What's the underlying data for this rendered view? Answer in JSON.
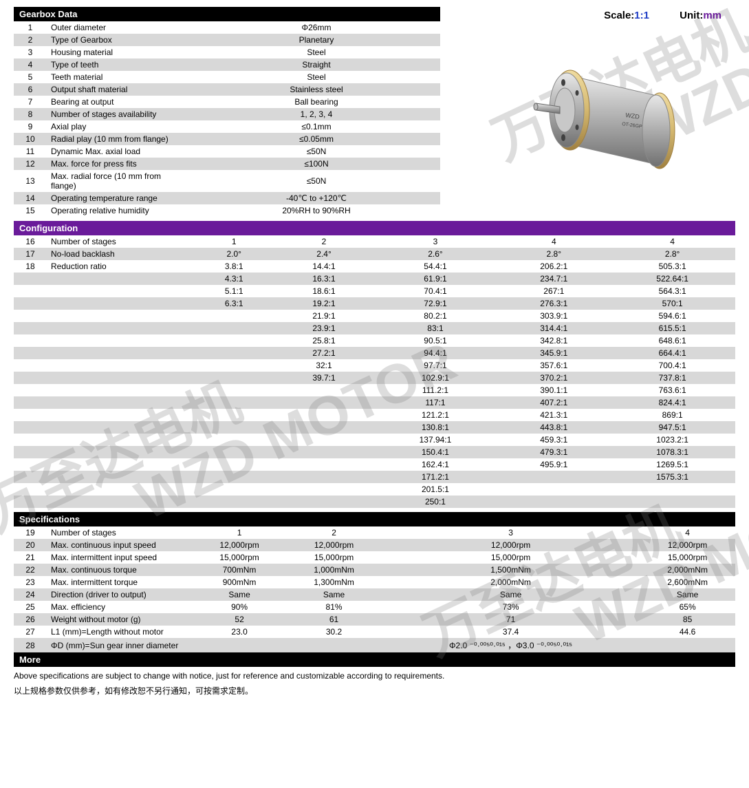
{
  "topRight": {
    "scaleLabel": "Scale:",
    "scaleValue": "1:1",
    "unitLabel": "Unit:",
    "unitValue": "mm"
  },
  "gearbox": {
    "header": "Gearbox Data",
    "rows": [
      {
        "n": "1",
        "label": "Outer diameter",
        "value": "Φ26mm"
      },
      {
        "n": "2",
        "label": "Type of Gearbox",
        "value": "Planetary"
      },
      {
        "n": "3",
        "label": "Housing material",
        "value": "Steel"
      },
      {
        "n": "4",
        "label": "Type of teeth",
        "value": "Straight"
      },
      {
        "n": "5",
        "label": "Teeth material",
        "value": "Steel"
      },
      {
        "n": "6",
        "label": "Output shaft material",
        "value": "Stainless steel"
      },
      {
        "n": "7",
        "label": "Bearing at output",
        "value": "Ball bearing"
      },
      {
        "n": "8",
        "label": "Number of stages availability",
        "value": "1, 2, 3, 4"
      },
      {
        "n": "9",
        "label": "Axial play",
        "value": "≤0.1mm"
      },
      {
        "n": "10",
        "label": "Radial play (10 mm from flange)",
        "value": "≤0.05mm"
      },
      {
        "n": "11",
        "label": "Dynamic Max. axial load",
        "value": "≤50N"
      },
      {
        "n": "12",
        "label": "Max. force for press fits",
        "value": "≤100N"
      },
      {
        "n": "13",
        "label": "Max. radial force (10 mm from flange)",
        "value": "≤50N"
      },
      {
        "n": "14",
        "label": "Operating temperature range",
        "value": "-40℃ to +120℃"
      },
      {
        "n": "15",
        "label": "Operating relative humidity",
        "value": "20%RH to 90%RH"
      }
    ]
  },
  "config": {
    "header": "Configuration",
    "rows": [
      {
        "n": "16",
        "label": "Number of stages",
        "c": [
          "1",
          "2",
          "3",
          "4",
          "4"
        ]
      },
      {
        "n": "17",
        "label": "No-load backlash",
        "c": [
          "2.0°",
          "2.4°",
          "2.6°",
          "2.8°",
          "2.8°"
        ]
      },
      {
        "n": "18",
        "label": "Reduction ratio",
        "c": [
          "3.8:1",
          "14.4:1",
          "54.4:1",
          "206.2:1",
          "505.3:1"
        ]
      },
      {
        "n": "",
        "label": "",
        "c": [
          "4.3:1",
          "16.3:1",
          "61.9:1",
          "234.7:1",
          "522.64:1"
        ]
      },
      {
        "n": "",
        "label": "",
        "c": [
          "5.1:1",
          "18.6:1",
          "70.4:1",
          "267:1",
          "564.3:1"
        ]
      },
      {
        "n": "",
        "label": "",
        "c": [
          "6.3:1",
          "19.2:1",
          "72.9:1",
          "276.3:1",
          "570:1"
        ]
      },
      {
        "n": "",
        "label": "",
        "c": [
          "",
          "21.9:1",
          "80.2:1",
          "303.9:1",
          "594.6:1"
        ]
      },
      {
        "n": "",
        "label": "",
        "c": [
          "",
          "23.9:1",
          "83:1",
          "314.4:1",
          "615.5:1"
        ]
      },
      {
        "n": "",
        "label": "",
        "c": [
          "",
          "25.8:1",
          "90.5:1",
          "342.8:1",
          "648.6:1"
        ]
      },
      {
        "n": "",
        "label": "",
        "c": [
          "",
          "27.2:1",
          "94.4:1",
          "345.9:1",
          "664.4:1"
        ]
      },
      {
        "n": "",
        "label": "",
        "c": [
          "",
          "32:1",
          "97.7:1",
          "357.6:1",
          "700.4:1"
        ]
      },
      {
        "n": "",
        "label": "",
        "c": [
          "",
          "39.7:1",
          "102.9:1",
          "370.2:1",
          "737.8:1"
        ]
      },
      {
        "n": "",
        "label": "",
        "c": [
          "",
          "",
          "111.2:1",
          "390.1:1",
          "763.6:1"
        ]
      },
      {
        "n": "",
        "label": "",
        "c": [
          "",
          "",
          "117:1",
          "407.2:1",
          "824.4:1"
        ]
      },
      {
        "n": "",
        "label": "",
        "c": [
          "",
          "",
          "121.2:1",
          "421.3:1",
          "869:1"
        ]
      },
      {
        "n": "",
        "label": "",
        "c": [
          "",
          "",
          "130.8:1",
          "443.8:1",
          "947.5:1"
        ]
      },
      {
        "n": "",
        "label": "",
        "c": [
          "",
          "",
          "137.94:1",
          "459.3:1",
          "1023.2:1"
        ]
      },
      {
        "n": "",
        "label": "",
        "c": [
          "",
          "",
          "150.4:1",
          "479.3:1",
          "1078.3:1"
        ]
      },
      {
        "n": "",
        "label": "",
        "c": [
          "",
          "",
          "162.4:1",
          "495.9:1",
          "1269.5:1"
        ]
      },
      {
        "n": "",
        "label": "",
        "c": [
          "",
          "",
          "171.2:1",
          "",
          "1575.3:1"
        ]
      },
      {
        "n": "",
        "label": "",
        "c": [
          "",
          "",
          "201.5:1",
          "",
          ""
        ]
      },
      {
        "n": "",
        "label": "",
        "c": [
          "",
          "",
          "250:1",
          "",
          ""
        ]
      }
    ]
  },
  "specs": {
    "header": "Specifications",
    "rows": [
      {
        "n": "19",
        "label": "Number of stages",
        "c": [
          "1",
          "2",
          "3",
          "4"
        ]
      },
      {
        "n": "20",
        "label": "Max. continuous input speed",
        "c": [
          "12,000rpm",
          "12,000rpm",
          "12,000rpm",
          "12,000rpm"
        ]
      },
      {
        "n": "21",
        "label": "Max. intermittent input speed",
        "c": [
          "15,000rpm",
          "15,000rpm",
          "15,000rpm",
          "15,000rpm"
        ]
      },
      {
        "n": "22",
        "label": "Max. continuous torque",
        "c": [
          "700mNm",
          "1,000mNm",
          "1,500mNm",
          "2,000mNm"
        ]
      },
      {
        "n": "23",
        "label": "Max. intermittent torque",
        "c": [
          "900mNm",
          "1,300mNm",
          "2,000mNm",
          "2,600mNm"
        ]
      },
      {
        "n": "24",
        "label": "Direction (driver to output)",
        "c": [
          "Same",
          "Same",
          "Same",
          "Same"
        ]
      },
      {
        "n": "25",
        "label": "Max. efficiency",
        "c": [
          "90%",
          "81%",
          "73%",
          "65%"
        ]
      },
      {
        "n": "26",
        "label": "Weight without motor (g)",
        "c": [
          "52",
          "61",
          "71",
          "85"
        ]
      },
      {
        "n": "27",
        "label": "L1 (mm)=Length without motor",
        "c": [
          "23.0",
          "30.2",
          "37.4",
          "44.6"
        ]
      },
      {
        "n": "28",
        "label": "ΦD (mm)=Sun gear inner diameter",
        "c": [
          "",
          "",
          "Φ2.0 ⁻⁰·⁰⁰⁵⁰·⁰¹⁵ ，Φ3.0 ⁻⁰·⁰⁰⁵⁰·⁰¹⁵",
          ""
        ]
      }
    ]
  },
  "more": {
    "header": "More",
    "note_en": "Above specifications are subject to change with notice, just for reference and customizable according to requirements.",
    "note_cn": "以上规格参数仅供参考，如有修改恕不另行通知，可按需求定制。"
  },
  "watermarks": {
    "en": "WZD MOTOR",
    "cn": "万至达电机"
  },
  "colors": {
    "header_black": "#000000",
    "header_purple": "#6a1b9a",
    "row_alt": "#d8d8d8",
    "scale_value": "#1e3cc4",
    "unit_value": "#6a1b9a",
    "watermark": "rgba(120,120,120,0.25)"
  }
}
